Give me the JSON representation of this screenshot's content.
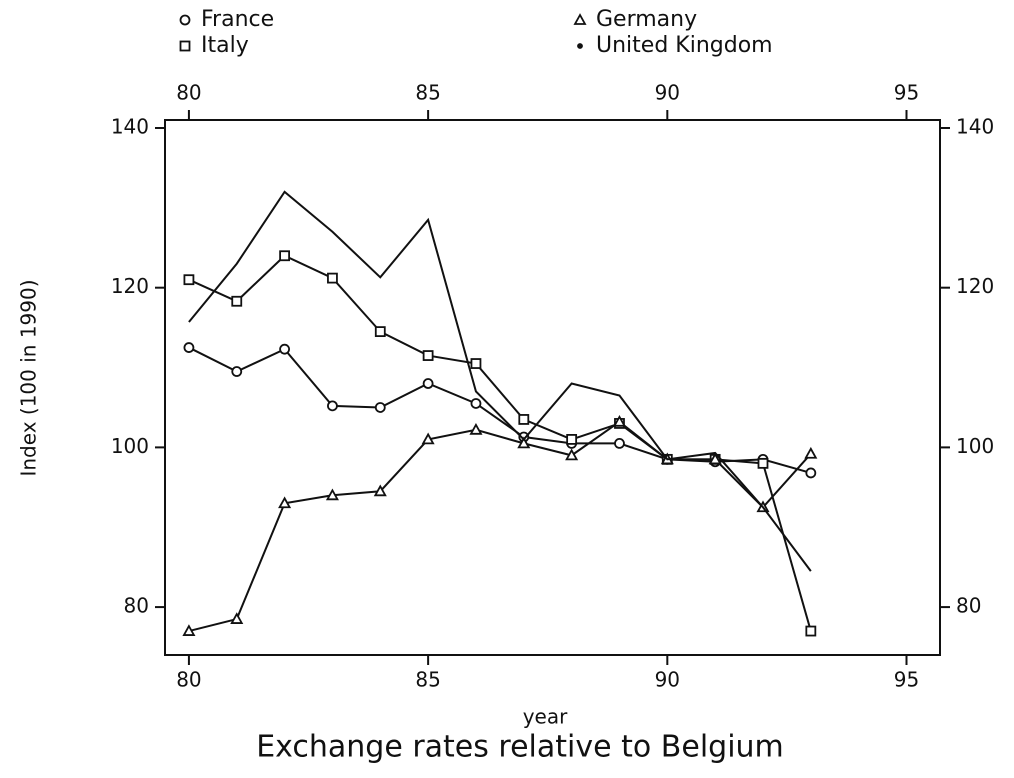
{
  "chart_data": {
    "type": "line",
    "title": "Exchange rates relative to Belgium",
    "x_label": "year",
    "y_label": "Index (100 in 1990)",
    "x": [
      80,
      81,
      82,
      83,
      84,
      85,
      86,
      87,
      88,
      89,
      90,
      91,
      92,
      93
    ],
    "series": [
      {
        "name": "France",
        "color": "#111111",
        "marker": "circle",
        "values": [
          112.5,
          109.5,
          112.3,
          105.2,
          105,
          108,
          105.5,
          101.3,
          100.5,
          100.5,
          98.5,
          98.2,
          98.5,
          96.8
        ]
      },
      {
        "name": "Italy",
        "color": "#111111",
        "marker": "square",
        "values": [
          121,
          118.3,
          124,
          121.2,
          114.5,
          111.5,
          110.5,
          103.5,
          101,
          103,
          98.5,
          98.5,
          98,
          77
        ]
      },
      {
        "name": "Germany",
        "color": "#111111",
        "marker": "triangle",
        "values": [
          77,
          78.5,
          93,
          94,
          94.5,
          101,
          102.2,
          100.5,
          99,
          103.2,
          98.5,
          98.5,
          92.5,
          99.2
        ]
      },
      {
        "name": "United Kingdom",
        "color": "#111111",
        "marker": "dot",
        "values": [
          115.7,
          123,
          132,
          127,
          121.3,
          128.5,
          107,
          101,
          108,
          106.5,
          98.5,
          99.3,
          92.5,
          84.5
        ]
      }
    ],
    "xlim": [
      79.5,
      95.7
    ],
    "xticks": [
      80,
      85,
      90,
      95
    ],
    "x2lim": [
      79.5,
      95.7
    ],
    "x2ticks": [
      80,
      85,
      90,
      95
    ],
    "ylim": [
      74,
      141
    ],
    "yticks": [
      80,
      100,
      120,
      140
    ],
    "y2lim": [
      74,
      141
    ],
    "y2ticks": [
      80,
      100,
      120,
      140
    ],
    "grid": false
  }
}
